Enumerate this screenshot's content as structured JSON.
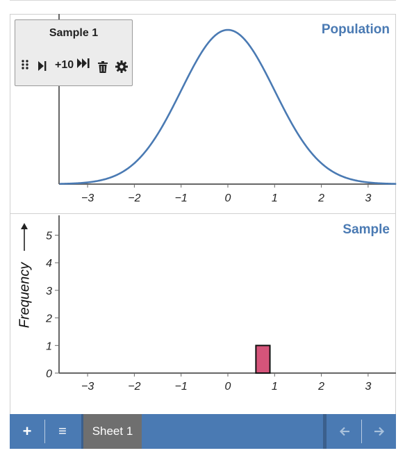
{
  "panels": {
    "population_title": "Population",
    "sample_title": "Sample"
  },
  "sample_box": {
    "title": "Sample 1",
    "plus10_label": "+10",
    "icons": [
      "drag-handle-icon",
      "step-forward-icon",
      "fast-forward-icon",
      "trash-icon",
      "gear-icon"
    ]
  },
  "toolbar": {
    "add_label": "+",
    "menu_label": "≡",
    "sheet_tab": "Sheet 1",
    "prev_label": "←",
    "next_label": "→"
  },
  "colors": {
    "accent": "#4a7ab3",
    "bar_fill": "#d5547a",
    "curve": "#4a7ab3",
    "tab_active": "#6f6f6f"
  },
  "chart_data": [
    {
      "type": "line",
      "title": "Population",
      "description_kind": "normal density curve",
      "mean": 0,
      "sd": 1,
      "xlim": [
        -3.6,
        3.6
      ],
      "xticks": [
        -3,
        -2,
        -1,
        0,
        1,
        2,
        3
      ],
      "xtick_labels": [
        "−3",
        "−2",
        "−1",
        "0",
        "1",
        "2",
        "3"
      ]
    },
    {
      "type": "bar",
      "title": "Sample",
      "ylabel": "Frequency",
      "xlim": [
        -3.6,
        3.6
      ],
      "ylim": [
        0,
        5.6
      ],
      "xticks": [
        -3,
        -2,
        -1,
        0,
        1,
        2,
        3
      ],
      "xtick_labels": [
        "−3",
        "−2",
        "−1",
        "0",
        "1",
        "2",
        "3"
      ],
      "yticks": [
        0,
        1,
        2,
        3,
        4,
        5
      ],
      "bins": [
        {
          "x_start": 0.6,
          "x_end": 0.9,
          "count": 1
        }
      ]
    }
  ]
}
